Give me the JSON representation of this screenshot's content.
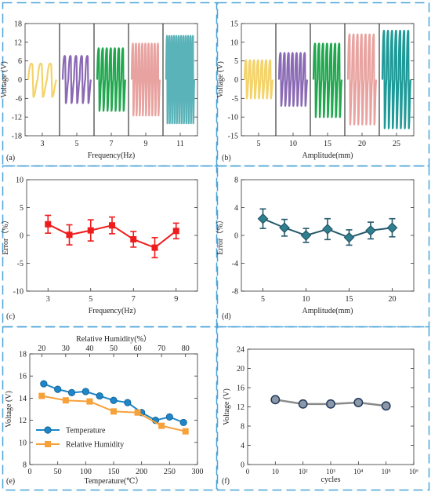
{
  "colors": {
    "frame": "#4aa3d8",
    "red": "#ee1c1c",
    "teal": "#24596b",
    "blue": "#1e86c8",
    "orange": "#f6a13a",
    "gray": "#8a8a8a",
    "grayMarker": "#1f3a5a"
  },
  "chart_data": [
    {
      "panel": "(a)",
      "type": "line",
      "xlabel": "Frequency(Hz)",
      "ylabel": "Voltage (V)",
      "ylim": [
        -18,
        18
      ],
      "yticks": [
        -18,
        -12,
        -6,
        0,
        6,
        12,
        18
      ],
      "xticks": [
        "3",
        "5",
        "7",
        "9",
        "11"
      ],
      "series": [
        {
          "category": "3",
          "amplitude_max": 5.5,
          "amplitude_min": -5.5,
          "color": "#f3d36a",
          "cycles": 3
        },
        {
          "category": "5",
          "amplitude_max": 8,
          "amplitude_min": -7.5,
          "color": "#8b6ab5",
          "cycles": 5
        },
        {
          "category": "7",
          "amplitude_max": 10.5,
          "amplitude_min": -10,
          "color": "#21a84f",
          "cycles": 7
        },
        {
          "category": "9",
          "amplitude_max": 12,
          "amplitude_min": -11.5,
          "color": "#e8a3a0",
          "cycles": 9
        },
        {
          "category": "11",
          "amplitude_max": 14.5,
          "amplitude_min": -14,
          "color": "#5ab3b8",
          "cycles": 12
        }
      ]
    },
    {
      "panel": "(b)",
      "type": "line",
      "xlabel": "Amplitude(mm)",
      "ylabel": "Voltage (V)",
      "ylim": [
        -15,
        15
      ],
      "yticks": [
        -15,
        -10,
        -5,
        0,
        5,
        10,
        15
      ],
      "xticks": [
        "5",
        "10",
        "15",
        "20",
        "25"
      ],
      "series": [
        {
          "category": "5",
          "amplitude_max": 5.5,
          "amplitude_min": -5,
          "color": "#f3d36a",
          "cycles": 7
        },
        {
          "category": "10",
          "amplitude_max": 7.5,
          "amplitude_min": -7,
          "color": "#8b6ab5",
          "cycles": 7
        },
        {
          "category": "15",
          "amplitude_max": 10,
          "amplitude_min": -10,
          "color": "#21a84f",
          "cycles": 7
        },
        {
          "category": "20",
          "amplitude_max": 12.5,
          "amplitude_min": -12,
          "color": "#e8a3a0",
          "cycles": 7
        },
        {
          "category": "25",
          "amplitude_max": 13.5,
          "amplitude_min": -13,
          "color": "#1f9a98",
          "cycles": 7
        }
      ]
    },
    {
      "panel": "(c)",
      "type": "line",
      "xlabel": "Frequency(Hz)",
      "ylabel": "Error（%）",
      "xlim": [
        2,
        10
      ],
      "ylim": [
        -10,
        10
      ],
      "yticks": [
        -10,
        -5,
        0,
        5,
        10
      ],
      "xticks": [
        3,
        5,
        7,
        9
      ],
      "x": [
        3,
        4,
        5,
        6,
        7,
        8,
        9
      ],
      "y": [
        2.0,
        0.1,
        0.9,
        1.8,
        -0.7,
        -2.2,
        0.8
      ],
      "err": [
        1.6,
        1.8,
        1.9,
        1.5,
        1.4,
        1.8,
        1.4
      ],
      "marker": "square",
      "color": "#ee1c1c"
    },
    {
      "panel": "(d)",
      "type": "line",
      "xlabel": "Amplitude(mm)",
      "ylabel": "Error（%）",
      "xlim": [
        2.5,
        22.5
      ],
      "ylim": [
        -8,
        8
      ],
      "yticks": [
        -8,
        -4,
        0,
        4,
        8
      ],
      "xticks": [
        5,
        10,
        15,
        20
      ],
      "x": [
        5,
        7.5,
        10,
        12.5,
        15,
        17.5,
        20
      ],
      "y": [
        2.4,
        1.1,
        0.0,
        0.9,
        -0.3,
        0.7,
        1.1
      ],
      "err": [
        1.4,
        1.2,
        1.0,
        1.5,
        1.1,
        1.2,
        1.3
      ],
      "marker": "diamond",
      "color": "#24596b"
    },
    {
      "panel": "(e)",
      "type": "line",
      "xlabel": "Temperature(℃）",
      "x2label": "Relative Humidity(%）",
      "ylabel": "Voltage (V)",
      "xlim": [
        0,
        300
      ],
      "x2lim": [
        15,
        85
      ],
      "ylim": [
        8,
        18
      ],
      "yticks": [
        8,
        10,
        12,
        14,
        16,
        18
      ],
      "xticks": [
        0,
        50,
        100,
        150,
        200,
        250,
        300
      ],
      "x2ticks": [
        20,
        30,
        40,
        50,
        60,
        70,
        80
      ],
      "legend": "bottom-left",
      "series": [
        {
          "name": "Temperature",
          "x": [
            25,
            50,
            75,
            100,
            125,
            150,
            175,
            200,
            225,
            250,
            275
          ],
          "y": [
            15.3,
            14.8,
            14.5,
            14.6,
            14.2,
            13.8,
            13.6,
            12.7,
            12.0,
            12.3,
            11.8
          ],
          "marker": "circle",
          "color": "#1e86c8",
          "axis": "bottom"
        },
        {
          "name": "Relative Humidity",
          "x": [
            20,
            30,
            40,
            50,
            60,
            70,
            80
          ],
          "y": [
            14.2,
            13.8,
            13.7,
            12.8,
            12.7,
            11.5,
            11.0
          ],
          "marker": "square",
          "color": "#f6a13a",
          "axis": "top"
        }
      ]
    },
    {
      "panel": "(f)",
      "type": "line",
      "xlabel": "cycles",
      "ylabel": "Voltage (V)",
      "ylim": [
        0,
        24
      ],
      "yticks": [
        0,
        4,
        8,
        12,
        16,
        20,
        24
      ],
      "xticks": [
        "0",
        "10",
        "10²",
        "10³",
        "10⁴",
        "10⁵",
        "10⁶"
      ],
      "x": [
        1,
        2,
        3,
        4,
        5
      ],
      "xlim": [
        0,
        6
      ],
      "y": [
        13.5,
        12.6,
        12.6,
        12.9,
        12.2
      ],
      "marker": "circle",
      "color": "#8a8a8a"
    }
  ]
}
